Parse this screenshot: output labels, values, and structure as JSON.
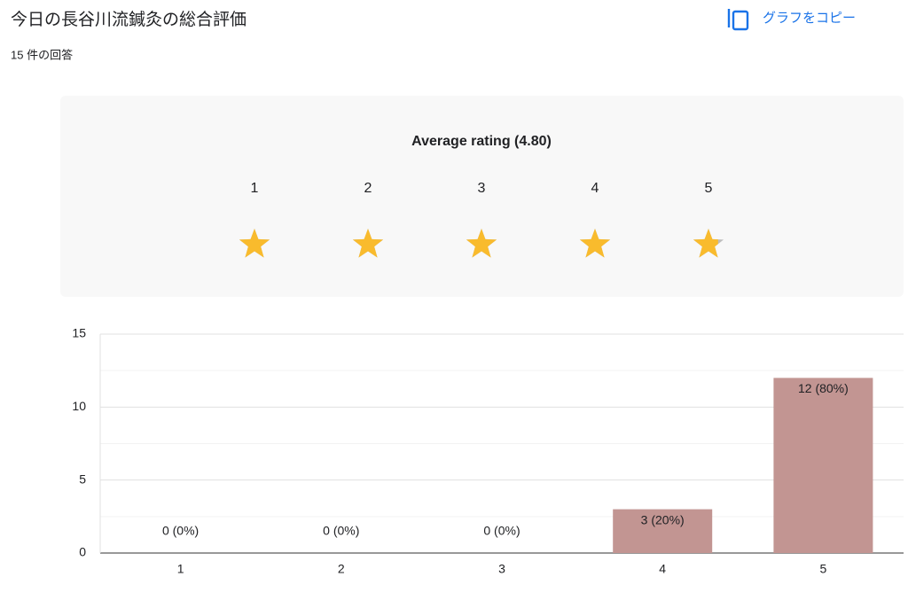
{
  "header": {
    "title": "今日の長谷川流鍼灸の総合評価",
    "responses": "15 件の回答",
    "copy_button": "グラフをコピー"
  },
  "rating": {
    "average": {
      "value": 4.8,
      "label": "Average rating (4.80)"
    },
    "star_labels": [
      "1",
      "2",
      "3",
      "4",
      "5"
    ]
  },
  "chart_data": {
    "type": "bar",
    "categories": [
      "1",
      "2",
      "3",
      "4",
      "5"
    ],
    "values": [
      0,
      0,
      0,
      3,
      12
    ],
    "value_labels": [
      "0 (0%)",
      "0 (0%)",
      "0 (0%)",
      "3 (20%)",
      "12 (80%)"
    ],
    "color": "#c29592",
    "ylim": [
      0,
      15
    ],
    "yticks": [
      0,
      5,
      10,
      15
    ],
    "grid": true,
    "minor_grid": true
  }
}
